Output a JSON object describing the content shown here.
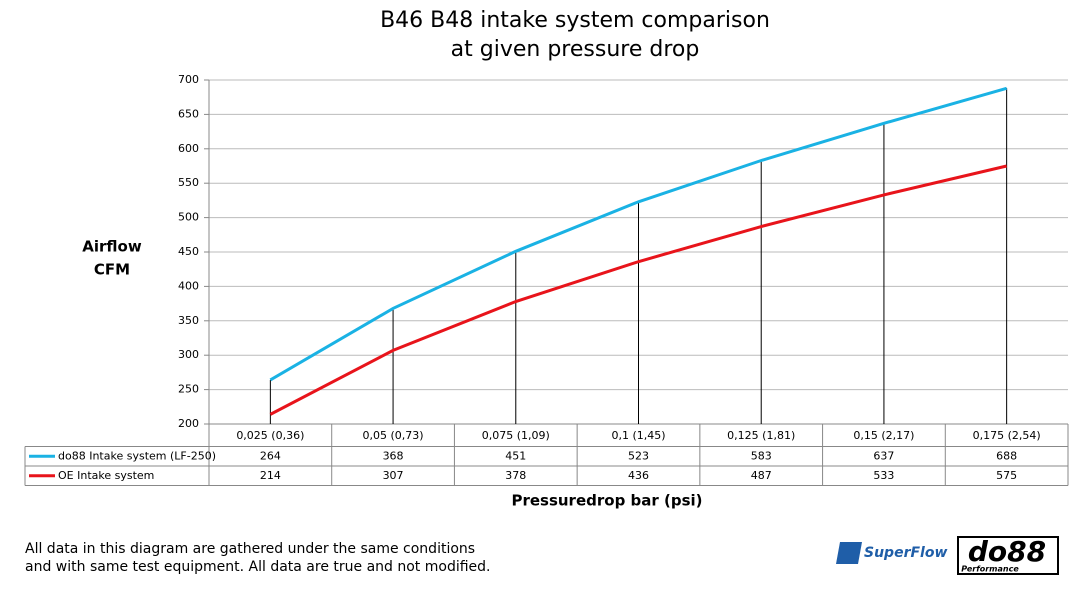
{
  "chart_data": {
    "type": "line",
    "title": [
      "B46 B48 intake system comparison",
      "at given pressure drop"
    ],
    "ylabel": [
      "Airflow",
      "CFM"
    ],
    "xlabel": "Pressuredrop bar (psi)",
    "categories": [
      "0,025 (0,36)",
      "0,05 (0,73)",
      "0,075 (1,09)",
      "0,1 (1,45)",
      "0,125 (1,81)",
      "0,15 (2,17)",
      "0,175 (2,54)"
    ],
    "series": [
      {
        "name": "do88 Intake system (LF-250)",
        "color": "#1ab2e4",
        "values": [
          264,
          368,
          451,
          523,
          583,
          637,
          688
        ]
      },
      {
        "name": "OE Intake system",
        "color": "#e8141b",
        "values": [
          214,
          307,
          378,
          436,
          487,
          533,
          575
        ]
      }
    ],
    "ylim": [
      200,
      700
    ],
    "yticks": [
      200,
      250,
      300,
      350,
      400,
      450,
      500,
      550,
      600,
      650,
      700
    ],
    "grid": true,
    "drop_lines": true,
    "data_table": true,
    "footnote": [
      "All data in this diagram are gathered under the same conditions",
      "and with same test equipment. All data are true and not modified."
    ],
    "logos": [
      "SuperFlow",
      "do88",
      "Performance"
    ]
  }
}
